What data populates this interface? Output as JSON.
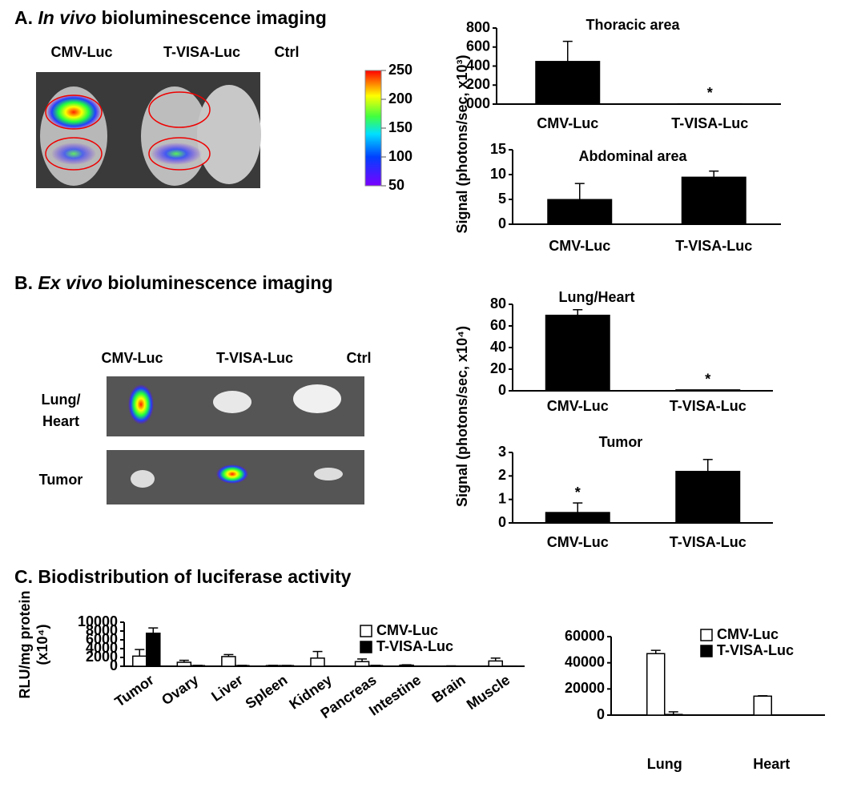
{
  "panel_a": {
    "title": [
      "A. ",
      "In vivo",
      " bioluminescence imaging"
    ],
    "image_labels": [
      "CMV-Luc",
      "T-VISA-Luc",
      "Ctrl"
    ],
    "colorbar_ticks": [
      250,
      200,
      150,
      100,
      50
    ]
  },
  "panel_b": {
    "title": [
      "B. ",
      "Ex vivo",
      " bioluminescence imaging"
    ],
    "image_labels": [
      "CMV-Luc",
      "T-VISA-Luc",
      "Ctrl"
    ],
    "row_labels": [
      "Lung/",
      "Heart",
      "Tumor"
    ]
  },
  "panel_c": {
    "title": "C. Biodistribution of luciferase activity"
  },
  "chart_data": [
    {
      "type": "bar",
      "title": "Thoracic area",
      "ylabel": "Signal (photons/sec, x10³)",
      "categories": [
        "CMV-Luc",
        "T-VISA-Luc"
      ],
      "values": [
        450,
        5
      ],
      "errors": [
        210,
        0
      ],
      "annotations": [
        null,
        "*"
      ],
      "color": "#000000",
      "ylim": [
        0,
        800
      ],
      "yticks": [
        {
          "value": 0,
          "label": "000"
        },
        200,
        400,
        600,
        800
      ]
    },
    {
      "type": "bar",
      "title": "Abdominal area",
      "categories": [
        "CMV-Luc",
        "T-VISA-Luc"
      ],
      "values": [
        5,
        9.5
      ],
      "errors": [
        3.2,
        1.2
      ],
      "color": "#000000",
      "ylim": [
        0,
        15
      ],
      "yticks": [
        0,
        5,
        10,
        15
      ]
    },
    {
      "type": "bar",
      "title": "Lung/Heart",
      "ylabel": "Signal (photons/sec, x10⁴)",
      "categories": [
        "CMV-Luc",
        "T-VISA-Luc"
      ],
      "values": [
        70,
        1
      ],
      "errors": [
        5,
        0
      ],
      "annotations": [
        null,
        "*"
      ],
      "color": "#000000",
      "ylim": [
        0,
        80
      ],
      "yticks": [
        0,
        20,
        40,
        60,
        80
      ]
    },
    {
      "type": "bar",
      "title": "Tumor",
      "categories": [
        "CMV-Luc",
        "T-VISA-Luc"
      ],
      "values": [
        0.45,
        2.2
      ],
      "errors": [
        0.4,
        0.5
      ],
      "annotations": [
        "*",
        null
      ],
      "color": "#000000",
      "ylim": [
        0,
        3
      ],
      "yticks": [
        0,
        1,
        2,
        3
      ]
    },
    {
      "type": "grouped_bar",
      "ylabel": [
        "RLU/mg protein",
        "(x10⁴)"
      ],
      "categories": [
        "Tumor",
        "Ovary",
        "Liver",
        "Spleen",
        "Kidney",
        "Pancreas",
        "Intestine",
        "Brain",
        "Muscle"
      ],
      "series": [
        {
          "name": "CMV-Luc",
          "color": "#ffffff",
          "values": [
            2300,
            900,
            2200,
            150,
            1850,
            1050,
            250,
            50,
            1200
          ],
          "errors": [
            1500,
            450,
            450,
            50,
            1500,
            600,
            80,
            40,
            650
          ]
        },
        {
          "name": "T-VISA-Luc",
          "color": "#000000",
          "values": [
            7500,
            150,
            150,
            150,
            50,
            150,
            50,
            30,
            50
          ],
          "errors": [
            1200,
            50,
            50,
            30,
            0,
            50,
            0,
            0,
            0
          ]
        }
      ],
      "legend": "upper right",
      "ylim": [
        0,
        10000
      ],
      "yticks": [
        0,
        2000,
        4000,
        6000,
        8000,
        10000
      ]
    },
    {
      "type": "grouped_bar",
      "categories": [
        "Lung",
        "Heart"
      ],
      "series": [
        {
          "name": "CMV-Luc",
          "color": "#ffffff",
          "values": [
            47000,
            14500
          ],
          "errors": [
            2500,
            300
          ]
        },
        {
          "name": "T-VISA-Luc",
          "color": "#000000",
          "values": [
            500,
            0
          ],
          "errors": [
            2000,
            0
          ]
        }
      ],
      "legend": "upper right",
      "ylim": [
        0,
        60000
      ],
      "yticks": [
        0,
        20000,
        40000,
        60000
      ]
    }
  ]
}
